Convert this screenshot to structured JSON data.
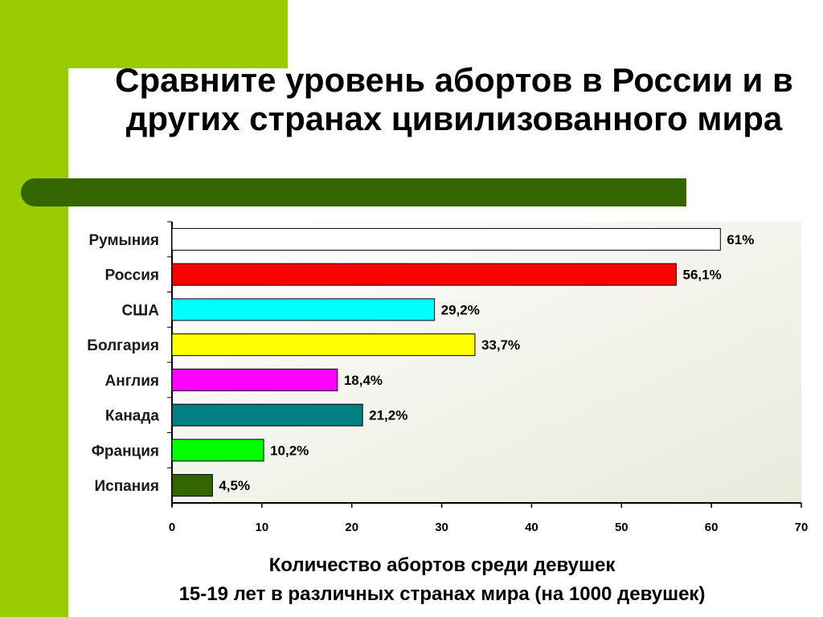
{
  "title": "Сравните уровень абортов в России и в других странах цивилизованного мира",
  "chart_data": {
    "type": "bar",
    "orientation": "horizontal",
    "categories": [
      "Румыния",
      "Россия",
      "США",
      "Болгария",
      "Англия",
      "Канада",
      "Франция",
      "Испания"
    ],
    "values": [
      61,
      56.1,
      29.2,
      33.7,
      18.4,
      21.2,
      10.2,
      4.5
    ],
    "value_labels": [
      "61%",
      "56,1%",
      "29,2%",
      "33,7%",
      "18,4%",
      "21,2%",
      "10,2%",
      "4,5%"
    ],
    "colors": [
      "#ffffff",
      "#ff0000",
      "#00ffff",
      "#ffff00",
      "#ff00ff",
      "#008080",
      "#00ff00",
      "#336600"
    ],
    "xlim": [
      0,
      70
    ],
    "xticks": [
      0,
      10,
      20,
      30,
      40,
      50,
      60,
      70
    ],
    "grid": false,
    "legend": "none",
    "xlabel_line1": "Количество абортов среди девушек",
    "xlabel_line2": "15-19 лет в различных странах мира (на 1000 девушек)"
  },
  "colors": {
    "accent_green": "#99cc00",
    "dark_green_strip": "#336600"
  }
}
